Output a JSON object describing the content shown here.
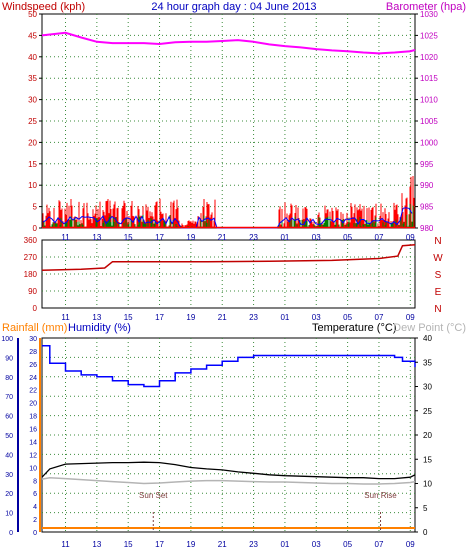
{
  "header": {
    "title": "24 hour graph day : 04 June 2013",
    "left_label": "Windspeed (kph)",
    "right_label": "Barometer (hpa)"
  },
  "lower_header": {
    "rainfall_label": "Rainfall (mm)",
    "humidity_label": "Humidity (%)",
    "temperature_label": "Temperature (°C)",
    "dewpoint_label": "Dew Point (°C)"
  },
  "time_ticks": [
    "11",
    "13",
    "15",
    "17",
    "19",
    "21",
    "23",
    "01",
    "03",
    "05",
    "07",
    "09"
  ],
  "colors": {
    "wind_gust": "#ff0000",
    "wind_avg": "#008000",
    "wind_dir_line": "#0000ff",
    "barometer": "#ff00ff",
    "direction": "#c00000",
    "humidity": "#0000ff",
    "temperature": "#000000",
    "dewpoint": "#b4b4b4",
    "rainfall": "#ff8000",
    "left_axis": "#c00000",
    "right_axis": "#c000c0",
    "hum_axis": "#0000a0",
    "temp_axis": "#000000"
  },
  "chart_data": [
    {
      "type": "line",
      "id": "wind",
      "title": "24 hour graph day : 04 June 2013",
      "ylabel": "Windspeed (kph)",
      "ylim": [
        0,
        50
      ],
      "yticks": [
        0,
        5,
        10,
        15,
        20,
        25,
        30,
        35,
        40,
        45,
        50
      ],
      "y2label": "Barometer (hpa)",
      "y2lim": [
        980,
        1030
      ],
      "y2ticks": [
        980,
        985,
        990,
        995,
        1000,
        1005,
        1010,
        1015,
        1020,
        1025,
        1030
      ],
      "x_start_hour": 9.5,
      "x_end_hour": 33.3,
      "series": [
        {
          "name": "Barometer (hpa)",
          "axis": "right",
          "x": [
            9.5,
            11,
            12,
            13,
            14,
            15,
            16,
            17,
            18,
            19,
            20,
            21,
            22,
            23,
            24,
            25,
            26,
            27,
            28,
            29,
            30,
            31,
            32,
            33,
            33.3
          ],
          "values": [
            1025,
            1025.6,
            1024.5,
            1023.5,
            1023.2,
            1023.2,
            1023.2,
            1023.0,
            1023.4,
            1023.5,
            1023.5,
            1023.7,
            1023.9,
            1023.5,
            1022.9,
            1022.5,
            1022.2,
            1021.8,
            1021.5,
            1021.3,
            1021.0,
            1020.8,
            1021.0,
            1021.3,
            1021.6
          ]
        }
      ]
    },
    {
      "type": "line",
      "id": "direction",
      "ylim": [
        0,
        360
      ],
      "yticks": [
        0,
        90,
        180,
        270,
        360
      ],
      "y2ticks": [
        "N",
        "W",
        "S",
        "E",
        "N"
      ],
      "series": [
        {
          "x": [
            9.5,
            12,
            13.5,
            14,
            20,
            24,
            28,
            31,
            32.2,
            32.5,
            33.3
          ],
          "values": [
            200,
            205,
            212,
            245,
            245,
            248,
            252,
            262,
            275,
            330,
            335
          ]
        }
      ]
    },
    {
      "type": "line",
      "id": "lower",
      "ylabel": "Humidity (%)",
      "ylim": [
        0,
        100
      ],
      "yticks": [
        0,
        10,
        20,
        30,
        40,
        50,
        60,
        70,
        80,
        90,
        100
      ],
      "rain_ticks": [
        0,
        2,
        4,
        6,
        8,
        10,
        12,
        14,
        16,
        18,
        20,
        22,
        24,
        26,
        28,
        30
      ],
      "y2label": "Temperature (°C)",
      "y2lim": [
        0,
        40
      ],
      "y2ticks": [
        0,
        5,
        10,
        15,
        20,
        25,
        30,
        35,
        40
      ],
      "annotations": [
        {
          "text": "Sun Set",
          "hour": 16.6
        },
        {
          "text": "Sun Rise",
          "hour": 31.1
        }
      ],
      "series": [
        {
          "name": "Humidity (%)",
          "x": [
            9.5,
            10,
            11,
            12,
            13,
            14,
            15,
            16,
            17,
            18,
            19,
            20,
            21,
            22,
            23,
            24,
            25,
            26,
            27,
            28,
            29,
            30,
            31,
            32,
            32.5,
            33.3
          ],
          "values": [
            96,
            87,
            83,
            81,
            80,
            78,
            76,
            75,
            78,
            82,
            84,
            86,
            88,
            90,
            91,
            91,
            91,
            91,
            91,
            91,
            91,
            91,
            91,
            90,
            88,
            85
          ]
        },
        {
          "name": "Temperature (°C)",
          "x": [
            9.5,
            10,
            11,
            12,
            13,
            14,
            15,
            16,
            17,
            18,
            19,
            20,
            21,
            22,
            23,
            24,
            25,
            26,
            27,
            28,
            29,
            30,
            31,
            32,
            33,
            33.3
          ],
          "values": [
            11.3,
            13,
            14,
            14.1,
            14.2,
            14.3,
            14.3,
            14.4,
            14.3,
            13.9,
            13.3,
            13,
            12.8,
            12.4,
            12.1,
            11.8,
            11.6,
            11.5,
            11.4,
            11.3,
            11.2,
            11.2,
            11.0,
            11.0,
            11.3,
            11.8
          ]
        },
        {
          "name": "Dew Point (°C)",
          "x": [
            9.5,
            10,
            11,
            12,
            13,
            14,
            15,
            16,
            17,
            18,
            19,
            20,
            21,
            22,
            23,
            24,
            25,
            26,
            27,
            28,
            29,
            30,
            31,
            32,
            33,
            33.3
          ],
          "values": [
            10.9,
            11.2,
            11.0,
            10.8,
            10.6,
            10.4,
            10.2,
            10.0,
            10.1,
            10.3,
            10.5,
            10.6,
            10.6,
            10.5,
            10.4,
            10.3,
            10.3,
            10.2,
            10.1,
            10.0,
            10.0,
            9.9,
            9.9,
            10.0,
            10.2,
            10.4
          ]
        },
        {
          "name": "Rainfall (mm)",
          "x": [
            9.5,
            33.3
          ],
          "values": [
            0,
            0
          ]
        }
      ]
    }
  ]
}
